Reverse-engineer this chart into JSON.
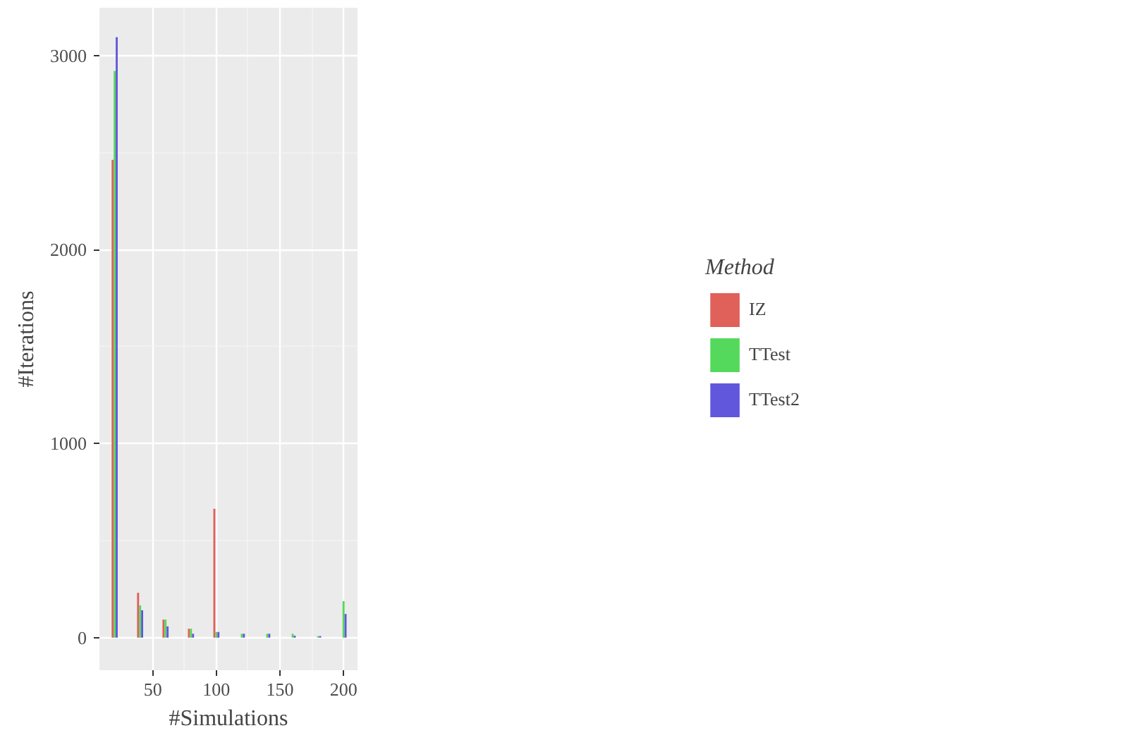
{
  "chart_data": {
    "type": "bar",
    "xlabel": "#Simulations",
    "ylabel": "#Iterations",
    "legend_title": "Method",
    "x": [
      20,
      40,
      60,
      80,
      100,
      120,
      140,
      160,
      180,
      200
    ],
    "series": [
      {
        "name": "IZ",
        "color": "#e0605a",
        "values": [
          2462,
          231,
          93,
          46,
          664,
          0,
          0,
          0,
          0,
          0
        ]
      },
      {
        "name": "TTest",
        "color": "#55d95c",
        "values": [
          2920,
          166,
          93,
          46,
          29,
          20,
          20,
          20,
          8,
          188
        ]
      },
      {
        "name": "TTest2",
        "color": "#6157dc",
        "values": [
          3094,
          141,
          58,
          20,
          29,
          20,
          20,
          10,
          8,
          122
        ]
      }
    ],
    "xlim": [
      8,
      211
    ],
    "ylim": [
      -168,
      3246
    ],
    "xticks": [
      50,
      100,
      150,
      200
    ],
    "yticks": [
      0,
      1000,
      2000,
      3000
    ],
    "grid": true,
    "legend": "right"
  }
}
